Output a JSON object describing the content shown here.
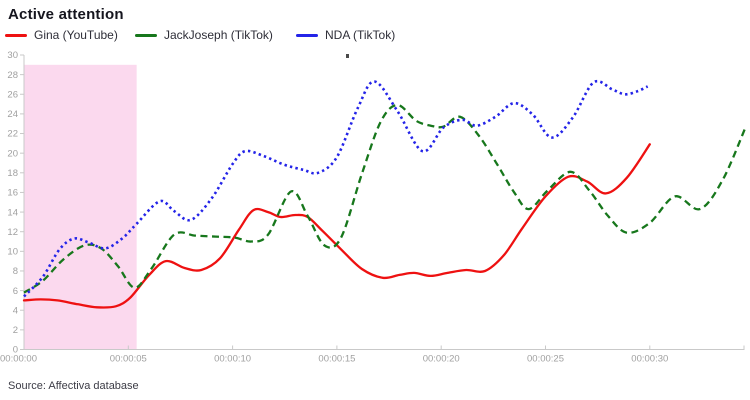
{
  "header": {
    "title": "Active attention"
  },
  "legend": [
    {
      "label": "Gina (YouTube)",
      "color": "#ee1111"
    },
    {
      "label": "JackJoseph (TikTok)",
      "color": "#17771c"
    },
    {
      "label": "NDA (TikTok)",
      "color": "#2424e8"
    }
  ],
  "footer": {
    "source": "Source: Affectiva database"
  },
  "chart_data": {
    "type": "line",
    "title": "Active attention",
    "xlabel": "",
    "ylabel": "",
    "x_unit": "time (hh:mm:ss)",
    "ylim": [
      0,
      30
    ],
    "xlim_seconds": [
      0,
      34.5
    ],
    "grid": false,
    "legend_position": "top",
    "axis_color": "#c9c9c9",
    "tick_label_color": "#a0a0a0",
    "y_ticks": [
      0,
      2,
      4,
      6,
      8,
      10,
      12,
      14,
      16,
      18,
      20,
      22,
      24,
      26,
      28,
      30
    ],
    "x_tick_seconds": [
      0,
      5,
      10,
      15,
      20,
      25,
      30
    ],
    "x_tick_labels": [
      "00:00:00",
      "00:00:05",
      "00:00:10",
      "00:00:15",
      "00:00:20",
      "00:00:25",
      "00:00:30"
    ],
    "highlight_region": {
      "from_seconds": 0,
      "to_seconds": 5.4,
      "top_value": 29,
      "color": "#fbd9ee"
    },
    "series": [
      {
        "name": "Gina (YouTube)",
        "color": "#ee1111",
        "style": "solid",
        "points": [
          [
            0,
            5.0
          ],
          [
            0.8,
            5.1
          ],
          [
            1.6,
            5.0
          ],
          [
            2.6,
            4.6
          ],
          [
            3.5,
            4.3
          ],
          [
            4.4,
            4.4
          ],
          [
            5.1,
            5.3
          ],
          [
            6.0,
            7.6
          ],
          [
            6.8,
            9.0
          ],
          [
            7.7,
            8.3
          ],
          [
            8.5,
            8.1
          ],
          [
            9.4,
            9.3
          ],
          [
            10.3,
            12.2
          ],
          [
            11.0,
            14.2
          ],
          [
            11.7,
            14.0
          ],
          [
            12.3,
            13.5
          ],
          [
            13.0,
            13.7
          ],
          [
            13.6,
            13.5
          ],
          [
            14.3,
            12.1
          ],
          [
            15.2,
            10.2
          ],
          [
            16.2,
            8.2
          ],
          [
            17.2,
            7.3
          ],
          [
            18.0,
            7.6
          ],
          [
            18.7,
            7.8
          ],
          [
            19.5,
            7.5
          ],
          [
            20.3,
            7.8
          ],
          [
            21.2,
            8.1
          ],
          [
            22.1,
            8.0
          ],
          [
            23.0,
            9.6
          ],
          [
            23.9,
            12.4
          ],
          [
            25.0,
            15.6
          ],
          [
            26.1,
            17.6
          ],
          [
            27.0,
            17.1
          ],
          [
            27.9,
            15.9
          ],
          [
            28.9,
            17.5
          ],
          [
            30.0,
            20.9
          ]
        ]
      },
      {
        "name": "JackJoseph (TikTok)",
        "color": "#17771c",
        "style": "dashed",
        "points": [
          [
            0,
            5.8
          ],
          [
            0.9,
            7.0
          ],
          [
            1.9,
            9.2
          ],
          [
            2.9,
            10.6
          ],
          [
            3.7,
            10.3
          ],
          [
            4.5,
            8.5
          ],
          [
            5.3,
            6.3
          ],
          [
            6.1,
            8.2
          ],
          [
            7.2,
            11.7
          ],
          [
            8.2,
            11.6
          ],
          [
            9.2,
            11.5
          ],
          [
            10.1,
            11.4
          ],
          [
            10.9,
            11.0
          ],
          [
            11.7,
            11.7
          ],
          [
            12.8,
            16.1
          ],
          [
            13.6,
            13.6
          ],
          [
            14.4,
            10.6
          ],
          [
            15.2,
            11.4
          ],
          [
            16.2,
            17.9
          ],
          [
            17.1,
            23.2
          ],
          [
            17.9,
            24.9
          ],
          [
            18.8,
            23.3
          ],
          [
            19.5,
            22.8
          ],
          [
            20.1,
            22.7
          ],
          [
            20.9,
            23.7
          ],
          [
            21.8,
            21.8
          ],
          [
            22.7,
            18.8
          ],
          [
            23.5,
            16.0
          ],
          [
            24.2,
            14.3
          ],
          [
            25.1,
            16.2
          ],
          [
            26.2,
            18.1
          ],
          [
            27.1,
            16.2
          ],
          [
            28.0,
            13.6
          ],
          [
            28.9,
            11.9
          ],
          [
            30.0,
            12.9
          ],
          [
            31.2,
            15.6
          ],
          [
            32.4,
            14.3
          ],
          [
            33.5,
            17.3
          ],
          [
            34.6,
            22.7
          ]
        ]
      },
      {
        "name": "NDA (TikTok)",
        "color": "#2424e8",
        "style": "dotted",
        "points": [
          [
            0,
            5.4
          ],
          [
            0.9,
            7.4
          ],
          [
            1.7,
            10.2
          ],
          [
            2.4,
            11.3
          ],
          [
            3.1,
            10.9
          ],
          [
            3.9,
            10.3
          ],
          [
            4.7,
            11.3
          ],
          [
            5.4,
            12.8
          ],
          [
            6.5,
            15.1
          ],
          [
            7.2,
            14.1
          ],
          [
            8.0,
            13.2
          ],
          [
            9.0,
            15.4
          ],
          [
            10.0,
            18.9
          ],
          [
            10.6,
            20.2
          ],
          [
            11.5,
            19.7
          ],
          [
            12.5,
            18.8
          ],
          [
            13.4,
            18.3
          ],
          [
            14.1,
            18.0
          ],
          [
            15.0,
            19.6
          ],
          [
            16.0,
            24.6
          ],
          [
            16.8,
            27.3
          ],
          [
            17.9,
            24.3
          ],
          [
            19.1,
            20.2
          ],
          [
            20.1,
            22.6
          ],
          [
            21.0,
            23.4
          ],
          [
            21.7,
            22.8
          ],
          [
            22.6,
            23.7
          ],
          [
            23.5,
            25.1
          ],
          [
            24.4,
            23.9
          ],
          [
            25.3,
            21.6
          ],
          [
            26.3,
            23.6
          ],
          [
            27.3,
            27.2
          ],
          [
            28.2,
            26.5
          ],
          [
            28.8,
            26.0
          ],
          [
            29.4,
            26.3
          ],
          [
            29.9,
            26.8
          ]
        ]
      }
    ]
  }
}
